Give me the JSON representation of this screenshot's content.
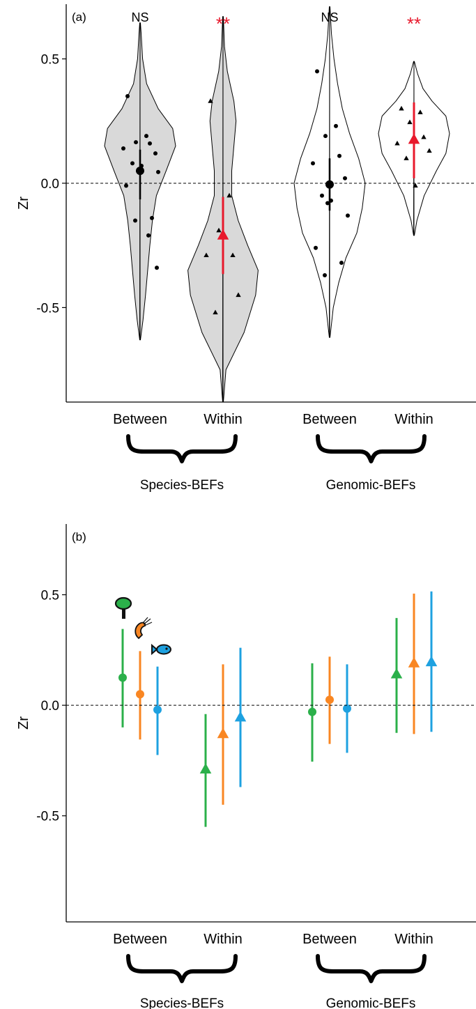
{
  "chart_data": [
    {
      "type": "violin",
      "panel_label": "(a)",
      "ylabel": "Zr",
      "ylim": [
        -0.88,
        0.72
      ],
      "yticks": [
        "0.5",
        "0.0",
        "-0.5"
      ],
      "ytick_values": [
        0.5,
        0.0,
        -0.5
      ],
      "reference_line": 0,
      "groups": [
        {
          "label": "Between",
          "group": "Species-BEFs",
          "fill": "#d9d9d9",
          "marker": "circle",
          "significance": "NS",
          "sig_color": "#000000",
          "mean": 0.05,
          "ci": [
            -0.065,
            0.135
          ],
          "points": [
            0.35,
            0.19,
            0.165,
            0.16,
            0.14,
            0.12,
            0.08,
            0.07,
            0.05,
            0.045,
            -0.01,
            -0.14,
            -0.15,
            -0.21,
            -0.34
          ],
          "violin_range": [
            -0.63,
            0.645
          ],
          "violin_profile": [
            [
              -0.63,
              0.01
            ],
            [
              -0.55,
              0.08
            ],
            [
              -0.45,
              0.15
            ],
            [
              -0.35,
              0.21
            ],
            [
              -0.25,
              0.27
            ],
            [
              -0.15,
              0.34
            ],
            [
              -0.05,
              0.45
            ],
            [
              0.05,
              0.72
            ],
            [
              0.15,
              0.98
            ],
            [
              0.22,
              0.9
            ],
            [
              0.3,
              0.5
            ],
            [
              0.4,
              0.18
            ],
            [
              0.5,
              0.07
            ],
            [
              0.6,
              0.03
            ],
            [
              0.645,
              0.01
            ]
          ]
        },
        {
          "label": "Within",
          "group": "Species-BEFs",
          "fill": "#d9d9d9",
          "marker": "triangle",
          "significance": "**",
          "sig_color": "#e8192c",
          "mean": -0.21,
          "ci": [
            -0.365,
            -0.055
          ],
          "points": [
            0.33,
            -0.05,
            -0.19,
            -0.29,
            -0.29,
            -0.45,
            -0.52
          ],
          "violin_range": [
            -0.88,
            0.67
          ],
          "violin_profile": [
            [
              -0.88,
              0.01
            ],
            [
              -0.75,
              0.08
            ],
            [
              -0.6,
              0.58
            ],
            [
              -0.45,
              0.9
            ],
            [
              -0.35,
              0.97
            ],
            [
              -0.25,
              0.68
            ],
            [
              -0.15,
              0.42
            ],
            [
              -0.05,
              0.24
            ],
            [
              0.05,
              0.24
            ],
            [
              0.15,
              0.3
            ],
            [
              0.25,
              0.36
            ],
            [
              0.33,
              0.3
            ],
            [
              0.45,
              0.12
            ],
            [
              0.55,
              0.04
            ],
            [
              0.67,
              0.01
            ]
          ]
        },
        {
          "label": "Between",
          "group": "Genomic-BEFs",
          "fill": "#ffffff",
          "marker": "circle",
          "significance": "NS",
          "sig_color": "#000000",
          "mean": -0.005,
          "ci": [
            -0.11,
            0.1
          ],
          "points": [
            0.45,
            0.23,
            0.19,
            0.11,
            0.08,
            0.02,
            -0.05,
            -0.07,
            -0.08,
            -0.13,
            -0.26,
            -0.32,
            -0.37
          ],
          "violin_range": [
            -0.62,
            0.71
          ],
          "violin_profile": [
            [
              -0.62,
              0.01
            ],
            [
              -0.5,
              0.1
            ],
            [
              -0.4,
              0.25
            ],
            [
              -0.3,
              0.45
            ],
            [
              -0.2,
              0.75
            ],
            [
              -0.1,
              0.9
            ],
            [
              0.0,
              0.98
            ],
            [
              0.1,
              0.8
            ],
            [
              0.2,
              0.55
            ],
            [
              0.3,
              0.35
            ],
            [
              0.4,
              0.22
            ],
            [
              0.5,
              0.12
            ],
            [
              0.6,
              0.05
            ],
            [
              0.71,
              0.01
            ]
          ]
        },
        {
          "label": "Within",
          "group": "Genomic-BEFs",
          "fill": "#ffffff",
          "marker": "triangle",
          "significance": "**",
          "sig_color": "#e8192c",
          "mean": 0.175,
          "ci": [
            0.02,
            0.325
          ],
          "points": [
            0.3,
            0.285,
            0.245,
            0.185,
            0.16,
            0.13,
            0.1,
            -0.01
          ],
          "violin_range": [
            -0.21,
            0.49
          ],
          "violin_profile": [
            [
              -0.21,
              0.01
            ],
            [
              -0.15,
              0.08
            ],
            [
              -0.05,
              0.28
            ],
            [
              0.05,
              0.62
            ],
            [
              0.12,
              0.88
            ],
            [
              0.2,
              0.98
            ],
            [
              0.27,
              0.88
            ],
            [
              0.33,
              0.5
            ],
            [
              0.38,
              0.25
            ],
            [
              0.44,
              0.1
            ],
            [
              0.49,
              0.01
            ]
          ]
        }
      ],
      "group_labels": [
        "Species-BEFs",
        "Genomic-BEFs"
      ]
    },
    {
      "type": "pointrange",
      "panel_label": "(b)",
      "ylabel": "Zr",
      "ylim": [
        -0.98,
        0.82
      ],
      "yticks": [
        "0.5",
        "0.0",
        "-0.5"
      ],
      "ytick_values": [
        0.5,
        0.0,
        -0.5
      ],
      "reference_line": 0,
      "categories": [
        {
          "label": "Between",
          "group": "Species-BEFs",
          "marker": "circle"
        },
        {
          "label": "Within",
          "group": "Species-BEFs",
          "marker": "triangle"
        },
        {
          "label": "Between",
          "group": "Genomic-BEFs",
          "marker": "circle"
        },
        {
          "label": "Within",
          "group": "Genomic-BEFs",
          "marker": "triangle"
        }
      ],
      "series": [
        {
          "icon": "tree-icon",
          "color": "#2bb04a",
          "values": [
            0.125,
            -0.29,
            -0.03,
            0.14
          ],
          "lower": [
            -0.1,
            -0.55,
            -0.255,
            -0.125
          ],
          "upper": [
            0.345,
            -0.04,
            0.19,
            0.395
          ]
        },
        {
          "icon": "shrimp-icon",
          "color": "#f98622",
          "values": [
            0.05,
            -0.13,
            0.025,
            0.19
          ],
          "lower": [
            -0.155,
            -0.45,
            -0.175,
            -0.13
          ],
          "upper": [
            0.245,
            0.185,
            0.22,
            0.505
          ]
        },
        {
          "icon": "fish-icon",
          "color": "#1ea1e0",
          "values": [
            -0.02,
            -0.055,
            -0.015,
            0.195
          ],
          "lower": [
            -0.225,
            -0.37,
            -0.215,
            -0.12
          ],
          "upper": [
            0.175,
            0.26,
            0.185,
            0.515
          ]
        }
      ],
      "group_labels": [
        "Species-BEFs",
        "Genomic-BEFs"
      ]
    }
  ]
}
